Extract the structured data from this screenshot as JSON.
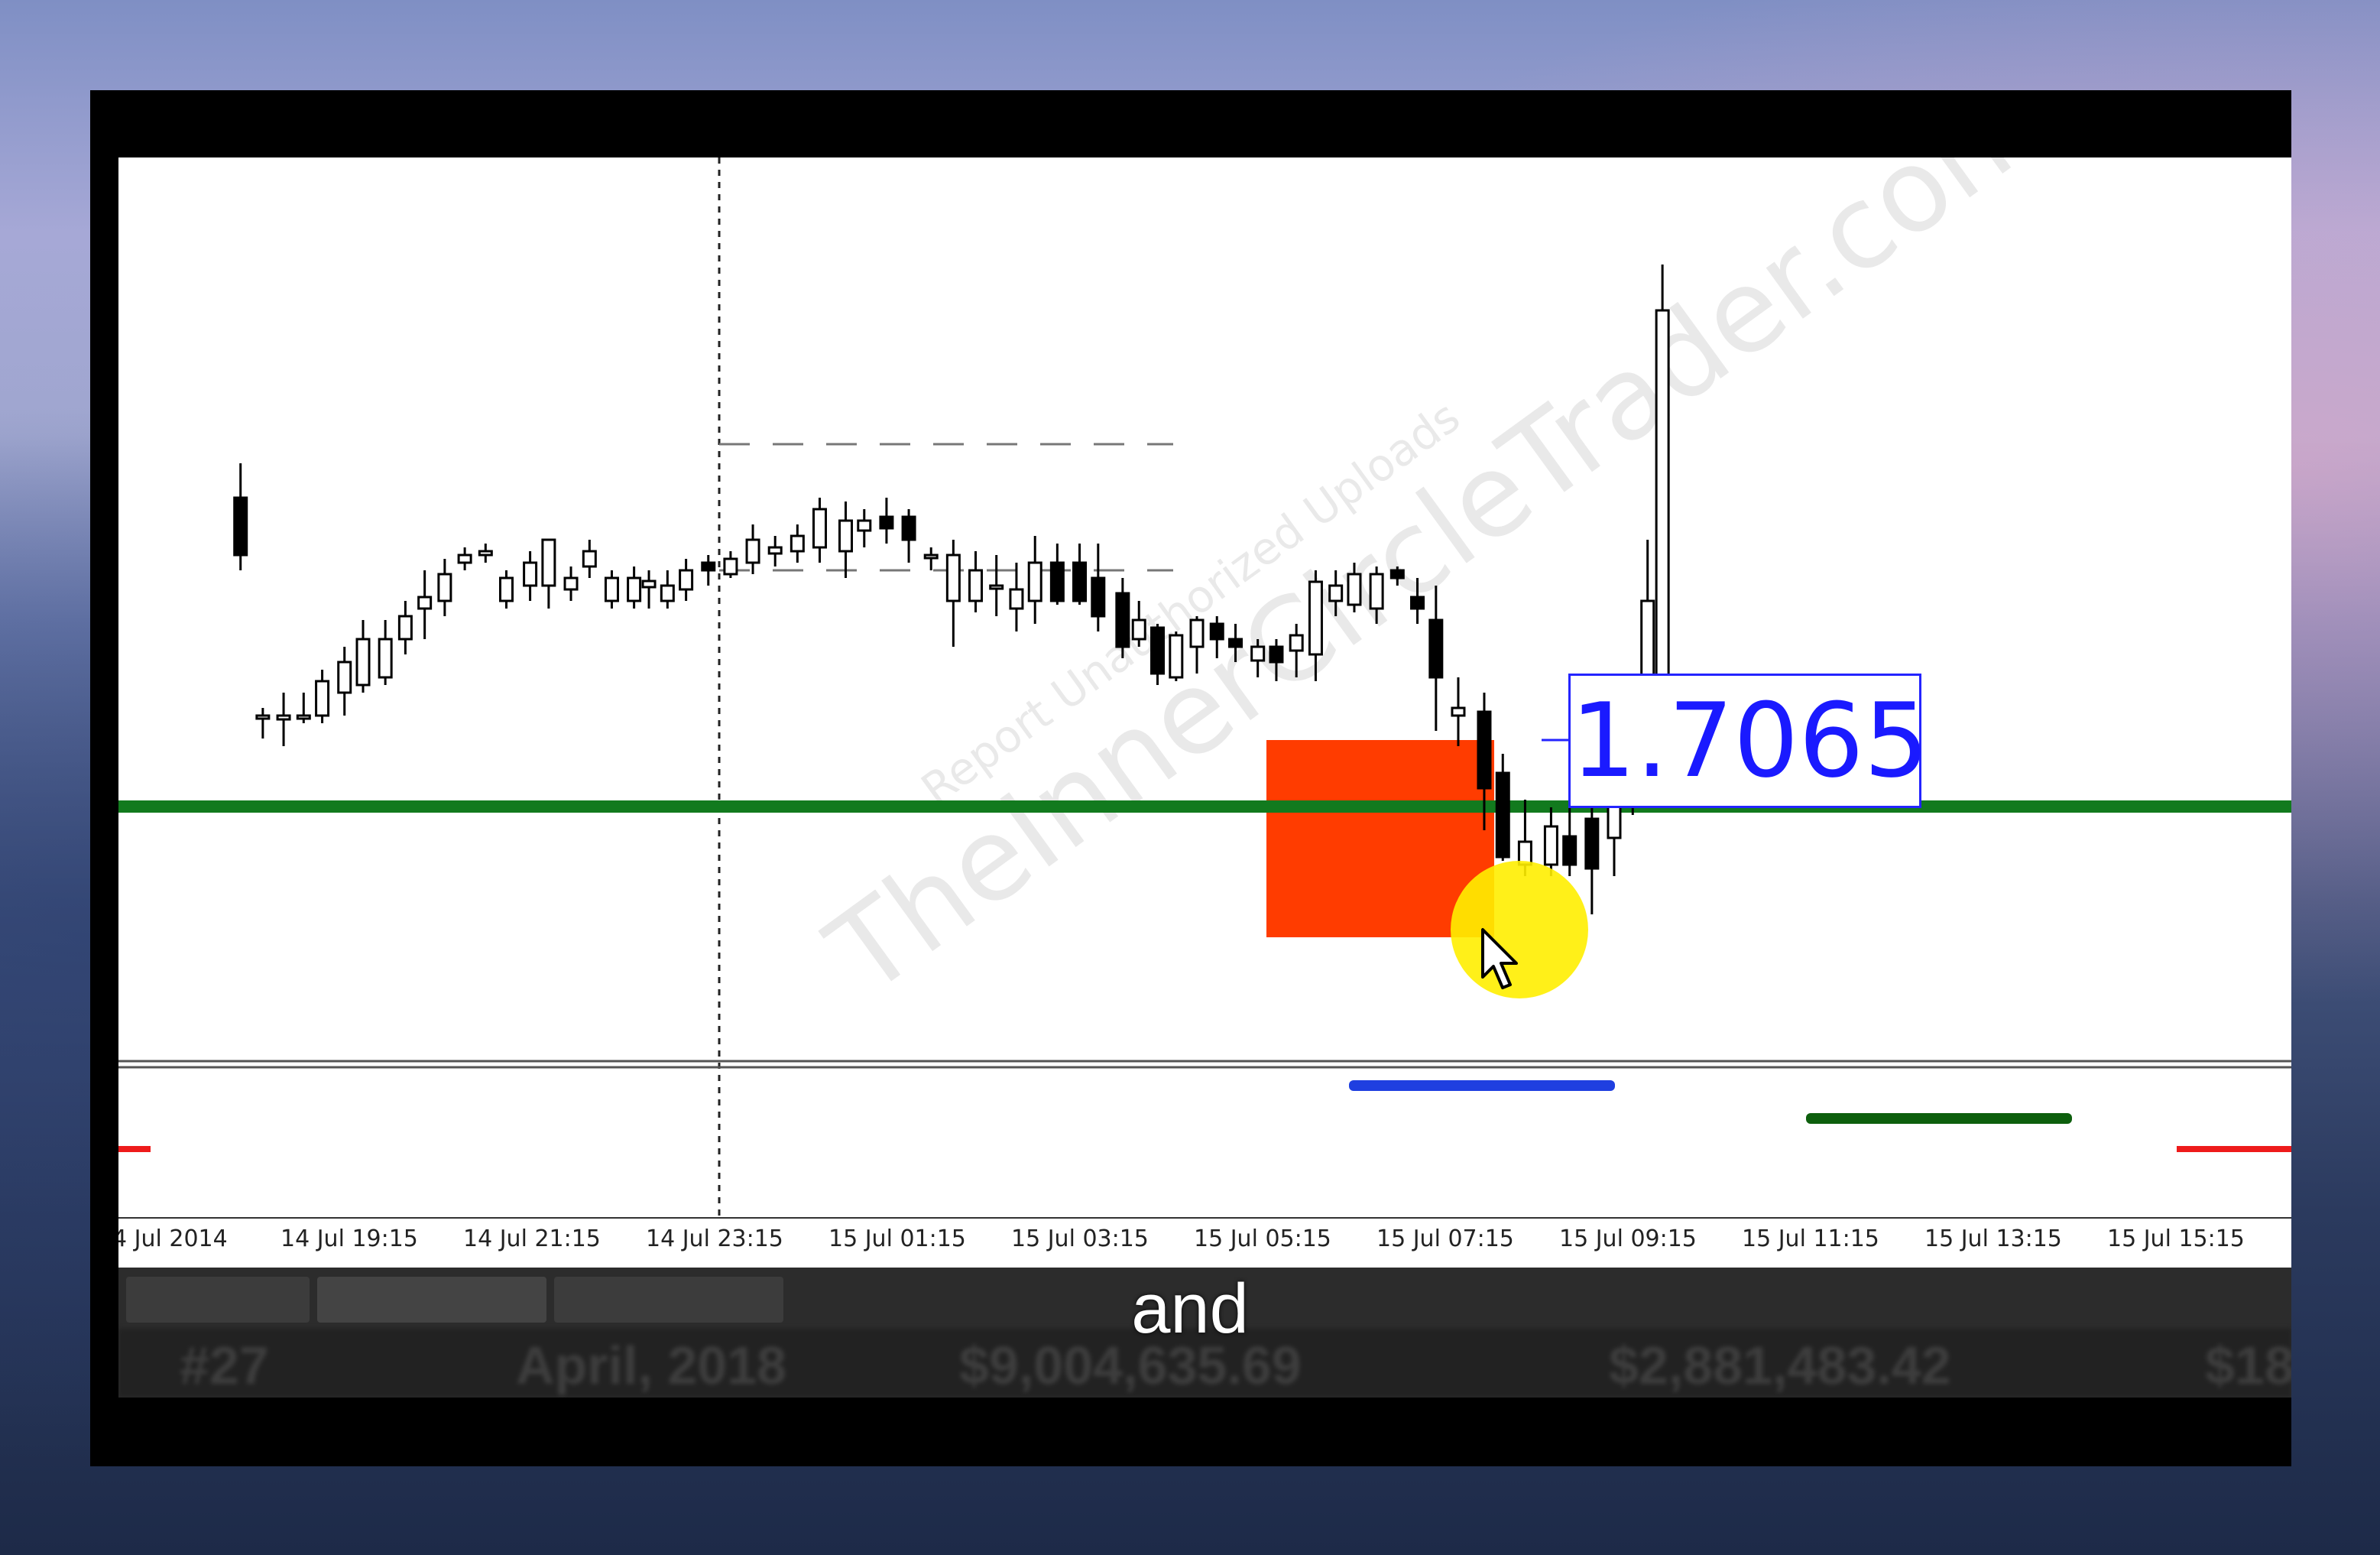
{
  "chart": {
    "price_label": "1.7065",
    "watermark": "TheInnerCircleTrader.com",
    "watermark_sub": "Report Unauthorized Uploads",
    "x_axis_labels": [
      "4 Jul 2014",
      "14 Jul 19:15",
      "14 Jul 21:15",
      "14 Jul 23:15",
      "15 Jul 01:15",
      "15 Jul 03:15",
      "15 Jul 05:15",
      "15 Jul 07:15",
      "15 Jul 09:15",
      "15 Jul 11:15",
      "15 Jul 13:15",
      "15 Jul 15:15"
    ],
    "colors": {
      "support_line": "#127a1e",
      "order_block": "#ff3c00",
      "cursor_highlight": "#ffee00",
      "price_label_text": "#1a1aff",
      "indicator_blue": "#1f3fe0",
      "indicator_green": "#0d5f0d",
      "indicator_red": "#ee1b1b"
    }
  },
  "bottom_table": {
    "row": [
      "#27",
      "April, 2018",
      "$9,004,635.69",
      "$2,881,483.42",
      "$18"
    ]
  },
  "subtitle": "and"
}
